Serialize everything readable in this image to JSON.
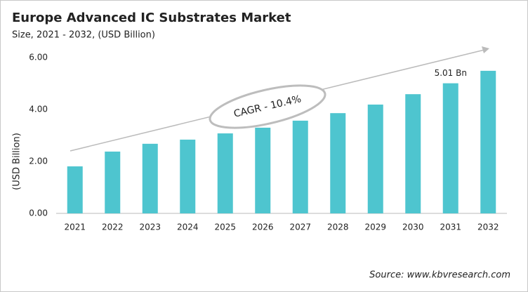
{
  "chart_data": {
    "type": "bar",
    "title": "Europe Advanced IC Substrates Market",
    "subtitle": "Size, 2021 - 2032, (USD Billion)",
    "y_label": "(USD Billion)",
    "annotation": "CAGR - 10.4%",
    "source": "Source: www.kbvresearch.com",
    "categories": [
      "2021",
      "2022",
      "2023",
      "2024",
      "2025",
      "2026",
      "2027",
      "2028",
      "2029",
      "2030",
      "2031",
      "2032"
    ],
    "values": [
      1.81,
      2.38,
      2.68,
      2.84,
      3.08,
      3.3,
      3.57,
      3.86,
      4.19,
      4.59,
      5.01,
      5.49
    ],
    "value_labels": [
      null,
      null,
      null,
      null,
      null,
      null,
      null,
      null,
      null,
      null,
      "5.01 Bn",
      null
    ],
    "color": "#4ec5cf",
    "ylim": [
      0,
      6
    ],
    "yticks": [
      {
        "value": 0,
        "label": "0.00"
      },
      {
        "value": 2,
        "label": "2.00"
      },
      {
        "value": 4,
        "label": "4.00"
      },
      {
        "value": 6,
        "label": "6.00"
      }
    ],
    "grid": false
  }
}
